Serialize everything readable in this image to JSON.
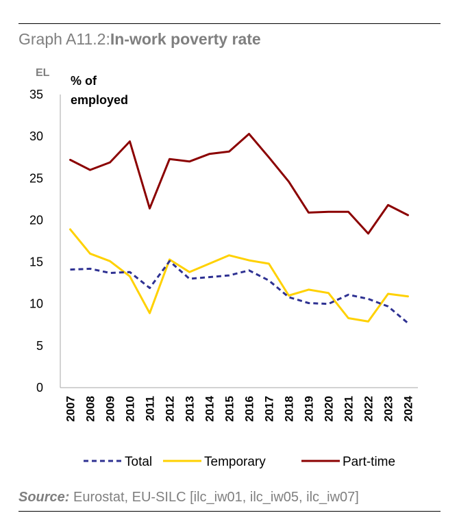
{
  "figure": {
    "title_prefix": "Graph A11.2:",
    "title_main": "In-work poverty rate",
    "source_label": "Source:",
    "source_text": " Eurostat, EU-SILC [ilc_iw01, ilc_iw05, ilc_iw07]"
  },
  "chart_data": {
    "type": "line",
    "country_label": "EL",
    "unit_label_line1": "% of",
    "unit_label_line2": "employed",
    "x": [
      "2007",
      "2008",
      "2009",
      "2010",
      "2011",
      "2012",
      "2013",
      "2014",
      "2015",
      "2016",
      "2017",
      "2018",
      "2019",
      "2020",
      "2021",
      "2022",
      "2023",
      "2024"
    ],
    "ylim": [
      0,
      35
    ],
    "yticks": [
      0,
      5,
      10,
      15,
      20,
      25,
      30,
      35
    ],
    "series": [
      {
        "name": "Total",
        "style": "dashed",
        "color": "#2E3192",
        "values": [
          14.1,
          14.2,
          13.7,
          13.8,
          11.9,
          15.1,
          13.0,
          13.2,
          13.4,
          14.0,
          12.8,
          10.8,
          10.1,
          10.0,
          11.1,
          10.6,
          9.7,
          7.7
        ]
      },
      {
        "name": "Temporary",
        "style": "solid",
        "color": "#FFD100",
        "values": [
          18.9,
          16.0,
          15.1,
          13.3,
          8.9,
          15.3,
          13.8,
          14.8,
          15.8,
          15.2,
          14.8,
          11.0,
          11.7,
          11.3,
          8.3,
          7.9,
          11.2,
          10.9
        ]
      },
      {
        "name": "Part-time",
        "style": "solid",
        "color": "#8B0000",
        "values": [
          27.2,
          26.0,
          26.9,
          29.4,
          21.4,
          27.3,
          27.0,
          27.9,
          28.2,
          30.3,
          27.5,
          24.6,
          20.9,
          21.0,
          21.0,
          18.4,
          21.8,
          20.6
        ]
      }
    ],
    "legend": [
      "Total",
      "Temporary",
      "Part-time"
    ]
  }
}
